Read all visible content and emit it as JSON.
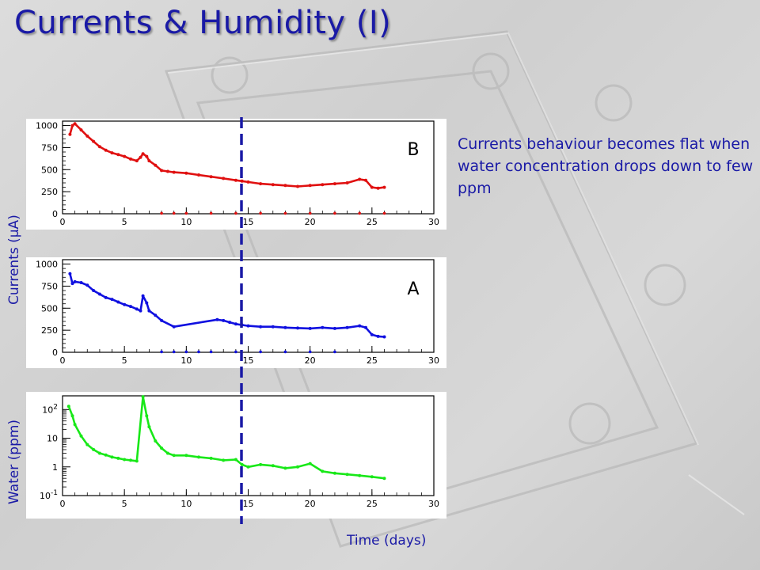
{
  "slide": {
    "title": "Currents & Humidity (I)",
    "annotation": "Currents behaviour becomes flat when water concentration drops down to few ppm",
    "y_label_currents": "Currents (μA)",
    "y_label_water": "Water (ppm)",
    "x_label": "Time (days)"
  },
  "colors": {
    "title": "#1a1aa6",
    "series_B": "#e01010",
    "series_A": "#1010e0",
    "series_water": "#18e818",
    "marker_line": "#1a1aa6"
  },
  "chart_data": [
    {
      "type": "scatter",
      "panel_label": "B",
      "xlim": [
        0,
        30
      ],
      "ylim": [
        0,
        1050
      ],
      "x_ticks": [
        0,
        5,
        10,
        15,
        20,
        25,
        30
      ],
      "y_ticks": [
        0,
        250,
        500,
        750,
        1000
      ],
      "series": [
        {
          "x": [
            0.6,
            0.8,
            1.0,
            1.5,
            2.0,
            2.5,
            3.0,
            3.5,
            4.0,
            4.5,
            5.0,
            5.5,
            6.0,
            6.3,
            6.5,
            6.8,
            7.0,
            7.5,
            8.0,
            8.5,
            9.0,
            10.0,
            11.0,
            12.0,
            13.0,
            14.0,
            14.5,
            15.0,
            16.0,
            17.0,
            18.0,
            19.0,
            20.0,
            21.0,
            22.0,
            23.0,
            24.0,
            24.5,
            25.0,
            25.5,
            26.0
          ],
          "y": [
            900,
            1000,
            1020,
            950,
            880,
            820,
            760,
            720,
            690,
            670,
            650,
            620,
            600,
            640,
            680,
            650,
            600,
            550,
            490,
            480,
            470,
            460,
            440,
            420,
            400,
            380,
            370,
            360,
            340,
            330,
            320,
            310,
            320,
            330,
            340,
            350,
            390,
            380,
            300,
            290,
            300
          ]
        },
        {
          "x": [
            8.0,
            9.0,
            10.0,
            12.0,
            14.0,
            16.0,
            18.0,
            20.0,
            22.0,
            24.0,
            26.0
          ],
          "y": [
            5,
            5,
            5,
            5,
            5,
            5,
            5,
            5,
            5,
            5,
            5
          ]
        }
      ]
    },
    {
      "type": "scatter",
      "panel_label": "A",
      "xlim": [
        0,
        30
      ],
      "ylim": [
        0,
        1050
      ],
      "x_ticks": [
        0,
        5,
        10,
        15,
        20,
        25,
        30
      ],
      "y_ticks": [
        0,
        250,
        500,
        750,
        1000
      ],
      "series": [
        {
          "x": [
            0.6,
            0.8,
            1.0,
            1.5,
            2.0,
            2.5,
            3.0,
            3.5,
            4.0,
            4.5,
            5.0,
            5.5,
            6.0,
            6.3,
            6.5,
            6.8,
            7.0,
            7.5,
            8.0,
            9.0,
            12.5,
            13.0,
            13.5,
            14.0,
            14.5,
            15.0,
            16.0,
            17.0,
            18.0,
            19.0,
            20.0,
            21.0,
            22.0,
            23.0,
            24.0,
            24.5,
            25.0,
            25.5,
            26.0
          ],
          "y": [
            890,
            780,
            800,
            790,
            760,
            700,
            660,
            620,
            600,
            570,
            540,
            520,
            490,
            470,
            640,
            560,
            470,
            420,
            360,
            290,
            370,
            360,
            340,
            320,
            310,
            300,
            290,
            290,
            280,
            275,
            270,
            280,
            270,
            280,
            300,
            280,
            200,
            180,
            175
          ]
        },
        {
          "x": [
            8.0,
            9.0,
            10.0,
            11.0,
            12.0,
            14.0,
            16.0,
            18.0,
            20.0,
            22.0
          ],
          "y": [
            5,
            5,
            5,
            5,
            5,
            5,
            5,
            5,
            5,
            5
          ]
        }
      ]
    },
    {
      "type": "scatter",
      "scale_y": "log",
      "xlim": [
        0,
        30
      ],
      "ylim": [
        0.1,
        300
      ],
      "x_ticks": [
        0,
        5,
        10,
        15,
        20,
        25,
        30
      ],
      "y_tick_labels": [
        "10^-1",
        "1",
        "10",
        "10^2"
      ],
      "series": [
        {
          "x": [
            0.5,
            0.8,
            1.0,
            1.5,
            2.0,
            2.5,
            3.0,
            3.5,
            4.0,
            4.5,
            5.0,
            5.5,
            6.0,
            6.5,
            6.8,
            7.0,
            7.5,
            8.0,
            8.5,
            9.0,
            10.0,
            11.0,
            12.0,
            13.0,
            14.0,
            14.5,
            15.0,
            16.0,
            17.0,
            18.0,
            19.0,
            20.0,
            21.0,
            22.0,
            23.0,
            24.0,
            25.0,
            26.0
          ],
          "y": [
            130,
            60,
            30,
            12,
            6,
            4,
            3,
            2.6,
            2.2,
            2.0,
            1.8,
            1.7,
            1.6,
            280,
            60,
            25,
            8,
            4.5,
            3,
            2.5,
            2.5,
            2.2,
            2.0,
            1.7,
            1.8,
            1.2,
            1.0,
            1.2,
            1.1,
            0.9,
            1.0,
            1.3,
            0.7,
            0.6,
            0.55,
            0.5,
            0.45,
            0.4
          ]
        }
      ]
    }
  ]
}
